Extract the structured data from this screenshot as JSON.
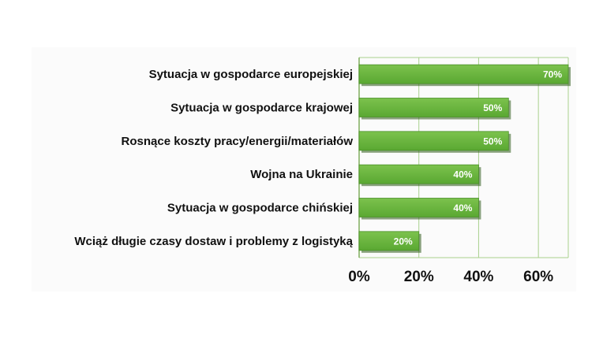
{
  "chart_data": {
    "type": "bar",
    "orientation": "horizontal",
    "categories": [
      "Sytuacja w gospodarce europejskiej",
      "Sytuacja w gospodarce krajowej",
      "Rosnące koszty pracy/energii/materiałów",
      "Wojna na Ukrainie",
      "Sytuacja w gospodarce chińskiej",
      "Wciąż długie czasy dostaw i problemy z logistyką"
    ],
    "values": [
      70,
      50,
      50,
      40,
      40,
      20
    ],
    "data_labels": [
      "70%",
      "50%",
      "50%",
      "40%",
      "40%",
      "20%"
    ],
    "x_ticks": [
      0,
      20,
      40,
      60
    ],
    "x_tick_labels": [
      "0%",
      "20%",
      "40%",
      "60%"
    ],
    "xlim": [
      0,
      70
    ],
    "grid": true,
    "bar_color": "#5aa832",
    "bar_color_light": "#7cc24d",
    "bar_shadow_color": "#2e5a18",
    "grid_color": "#a8d08d"
  }
}
